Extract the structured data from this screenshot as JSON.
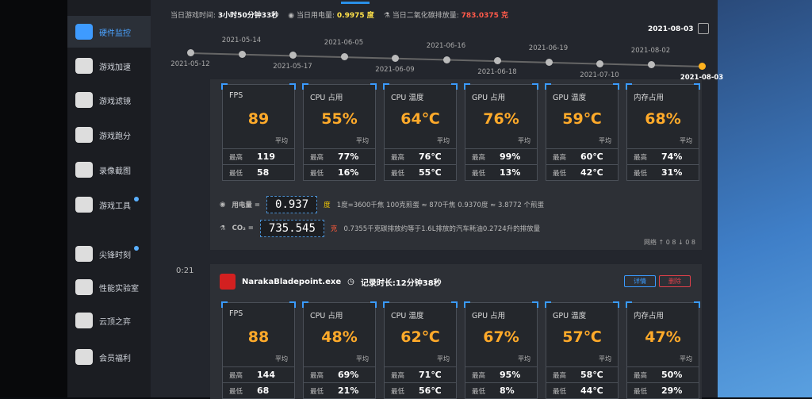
{
  "sidebar": {
    "items": [
      {
        "label": "硬件监控",
        "active": true
      },
      {
        "label": "游戏加速"
      },
      {
        "label": "游戏滤镜"
      },
      {
        "label": "游戏跑分"
      },
      {
        "label": "录像截图"
      },
      {
        "label": "游戏工具",
        "badge": true
      },
      {
        "label": "尖锋时刻",
        "badge": true
      },
      {
        "label": "性能实验室"
      },
      {
        "label": "云顶之弈"
      },
      {
        "label": "会员福利"
      }
    ]
  },
  "summary": {
    "play_time_label": "当日游戏时间:",
    "play_time": "3小时50分钟33秒",
    "power_label": "当日用电量:",
    "power": "0.9975 度",
    "co2_label": "当日二氧化碳排放量:",
    "co2": "783.0375 克"
  },
  "selected_date": "2021-08-03",
  "timeline": [
    "2021-05-12",
    "2021-05-14",
    "2021-05-17",
    "2021-06-05",
    "2021-06-09",
    "2021-06-16",
    "2021-06-18",
    "2021-06-19",
    "2021-07-10",
    "2021-08-02",
    "2021-08-03"
  ],
  "accent": "#3a9bff",
  "value_color": "#ffaa2a",
  "labels": {
    "avg": "平均",
    "max": "最高",
    "min": "最低"
  },
  "session1": {
    "cards": [
      {
        "title": "FPS",
        "value": "89",
        "max": "119",
        "min": "58"
      },
      {
        "title": "CPU 占用",
        "value": "55%",
        "max": "77%",
        "min": "16%"
      },
      {
        "title": "CPU 温度",
        "value": "64℃",
        "max": "76℃",
        "min": "55℃"
      },
      {
        "title": "GPU 占用",
        "value": "76%",
        "max": "99%",
        "min": "13%"
      },
      {
        "title": "GPU 温度",
        "value": "59℃",
        "max": "60℃",
        "min": "42℃"
      },
      {
        "title": "内存占用",
        "value": "68%",
        "max": "74%",
        "min": "31%"
      }
    ],
    "power_label": "用电量 =",
    "power_value": "0.937",
    "power_unit": "度",
    "power_note": "1度=3600千焦    100克煎蛋 ≈ 870千焦    0.9370度 ≈ 3.8772 个煎蛋",
    "co2_label": "CO₂ =",
    "co2_value": "735.545",
    "co2_unit": "克",
    "co2_note": "0.7355千克碳排放约等于1.6L排放的汽车耗油0.2724升的排放量",
    "network": "网络 ↑ 0 8 ↓ 0 8"
  },
  "session2": {
    "time": "0:21",
    "exe": "NarakaBladepoint.exe",
    "duration": "记录时长:12分钟38秒",
    "details_btn": "详情",
    "delete_btn": "删除",
    "cards": [
      {
        "title": "FPS",
        "value": "88",
        "max": "144",
        "min": "68"
      },
      {
        "title": "CPU 占用",
        "value": "48%",
        "max": "69%",
        "min": "21%"
      },
      {
        "title": "CPU 温度",
        "value": "62℃",
        "max": "71℃",
        "min": "56℃"
      },
      {
        "title": "GPU 占用",
        "value": "67%",
        "max": "95%",
        "min": "8%"
      },
      {
        "title": "GPU 温度",
        "value": "57℃",
        "max": "58℃",
        "min": "44℃"
      },
      {
        "title": "内存占用",
        "value": "47%",
        "max": "50%",
        "min": "29%"
      }
    ]
  }
}
